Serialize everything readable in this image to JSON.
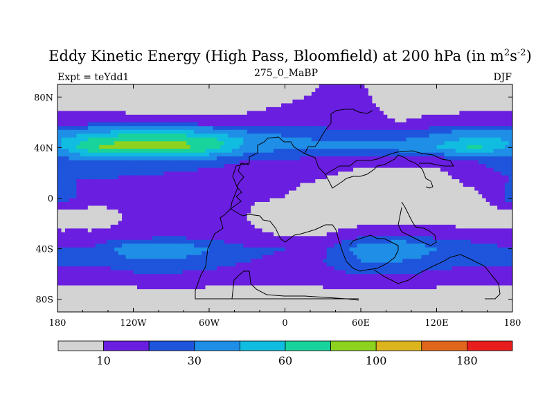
{
  "chart_data": {
    "type": "heatmap",
    "title": {
      "main": "Eddy Kinetic Energy (High Pass, Bloomfield) at 200 hPa (in m",
      "sup1": "2",
      "mid": "s",
      "sup2": "-2",
      "end": ")"
    },
    "subtitle_left": "Expt = teYdd1",
    "subtitle_center": "275_0_MaBP",
    "subtitle_right": "DJF",
    "x_ticks": [
      "180",
      "120W",
      "60W",
      "0",
      "60E",
      "120E",
      "180"
    ],
    "y_ticks": [
      "80N",
      "40N",
      "0",
      "40S",
      "80S"
    ],
    "xlim": [
      -180,
      180
    ],
    "ylim": [
      -90,
      90
    ],
    "colorbar": {
      "levels": [
        10,
        20,
        30,
        45,
        60,
        80,
        100,
        130,
        180
      ],
      "tick_labels": [
        "10",
        "30",
        "60",
        "100",
        "180"
      ],
      "colors": [
        "#d3d3d3",
        "#6a1ee0",
        "#1e55dc",
        "#1e8ee6",
        "#10bce0",
        "#18d49c",
        "#8cd21e",
        "#dcb41e",
        "#e0661c",
        "#e81e1e"
      ]
    },
    "values_description_grid": {
      "lon": [
        -180,
        -150,
        -120,
        -90,
        -60,
        -30,
        0,
        30,
        60,
        90,
        120,
        150,
        180
      ],
      "lat": [
        80,
        60,
        45,
        40,
        30,
        15,
        0,
        -15,
        -30,
        -40,
        -50,
        -65,
        -80
      ],
      "data": [
        [
          3,
          3,
          3,
          3,
          3,
          3,
          8,
          12,
          12,
          4,
          3,
          3,
          3
        ],
        [
          15,
          15,
          14,
          14,
          14,
          14,
          16,
          16,
          14,
          10,
          13,
          15,
          15
        ],
        [
          45,
          70,
          85,
          85,
          70,
          45,
          35,
          30,
          30,
          30,
          40,
          55,
          45
        ],
        [
          40,
          80,
          95,
          90,
          70,
          40,
          30,
          30,
          35,
          35,
          45,
          65,
          40
        ],
        [
          25,
          30,
          30,
          30,
          25,
          20,
          20,
          15,
          15,
          14,
          14,
          20,
          25
        ],
        [
          20,
          20,
          18,
          15,
          13,
          12,
          12,
          10,
          4,
          4,
          5,
          15,
          20
        ],
        [
          25,
          15,
          12,
          12,
          11,
          11,
          10,
          4,
          4,
          4,
          4,
          5,
          25
        ],
        [
          3,
          3,
          12,
          14,
          13,
          10,
          3,
          3,
          3,
          3,
          3,
          4,
          3
        ],
        [
          13,
          13,
          15,
          18,
          16,
          12,
          10,
          10,
          18,
          20,
          18,
          15,
          13
        ],
        [
          20,
          22,
          40,
          40,
          30,
          22,
          20,
          18,
          35,
          45,
          30,
          25,
          20
        ],
        [
          22,
          22,
          28,
          28,
          25,
          20,
          18,
          20,
          30,
          30,
          25,
          22,
          22
        ],
        [
          12,
          12,
          14,
          15,
          14,
          12,
          12,
          14,
          16,
          16,
          14,
          12,
          12
        ],
        [
          3,
          3,
          3,
          3,
          3,
          3,
          3,
          3,
          3,
          3,
          3,
          3,
          3
        ]
      ]
    }
  },
  "colors": {
    "land_outline": "#000000",
    "background": "#ffffff"
  }
}
